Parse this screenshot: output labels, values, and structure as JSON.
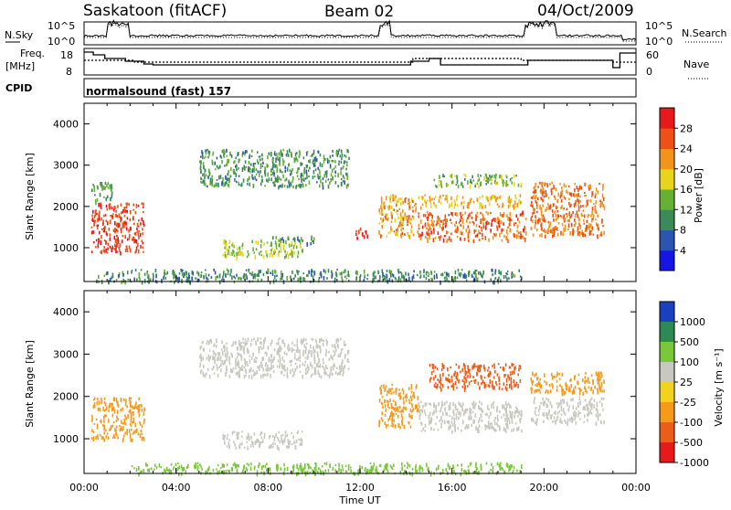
{
  "header": {
    "station": "Saskatoon  (fitACF)",
    "beam": "Beam 02",
    "date": "04/Oct/2009"
  },
  "noise_panel": {
    "left_label": "N.Sky",
    "right_label": "N.Search",
    "left_ticks": [
      "10^5",
      "10^0"
    ],
    "right_ticks": [
      "10^5",
      "10^0"
    ]
  },
  "freq_panel": {
    "left_label_1": "Freq.",
    "left_label_2": "[MHz]",
    "right_label": "Nave",
    "left_ticks": [
      "18",
      "8"
    ],
    "right_ticks": [
      "60",
      "0"
    ]
  },
  "cpid_panel": {
    "label": "CPID",
    "value": "normalsound (fast) 157"
  },
  "axes": {
    "ylabel": "Slant Range [km]",
    "xlabel": "Time UT",
    "y_ticks": [
      "1000",
      "2000",
      "3000",
      "4000"
    ],
    "x_ticks": [
      "00:00",
      "04:00",
      "08:00",
      "12:00",
      "16:00",
      "20:00",
      "00:00"
    ]
  },
  "power_colorbar": {
    "label": "Power [dB]",
    "ticks": [
      "4",
      "8",
      "12",
      "16",
      "20",
      "24",
      "28"
    ],
    "colors": [
      "#1515e6",
      "#2b55b0",
      "#3a8a5a",
      "#66b033",
      "#e6d51a",
      "#f2941a",
      "#ee5015",
      "#e61a1a"
    ]
  },
  "velocity_colorbar": {
    "label": "Velocity [m s⁻¹]",
    "ticks": [
      "1000",
      "500",
      "100",
      "25",
      "-25",
      "-100",
      "-500",
      "-1000"
    ],
    "colors": [
      "#1a3fbf",
      "#2e8a55",
      "#7ac83a",
      "#c8c8c0",
      "#f2d21a",
      "#f59a1a",
      "#ec5d1a",
      "#e61a1a"
    ]
  },
  "chart_data": {
    "type": "heatmap",
    "x_range": [
      "00:00",
      "24:00"
    ],
    "ylim": [
      180,
      4500
    ],
    "power_patches": [
      {
        "t0": 0.3,
        "t1": 2.6,
        "r0": 900,
        "r1": 2100,
        "level": 26
      },
      {
        "t0": 0.3,
        "t1": 1.2,
        "r0": 2100,
        "r1": 2600,
        "level": 10
      },
      {
        "t0": 5.0,
        "t1": 11.5,
        "r0": 2500,
        "r1": 3400,
        "level": 9
      },
      {
        "t0": 6.0,
        "t1": 9.5,
        "r0": 800,
        "r1": 1200,
        "level": 14
      },
      {
        "t0": 8.0,
        "t1": 10.0,
        "r0": 1100,
        "r1": 1300,
        "level": 8
      },
      {
        "t0": 11.8,
        "t1": 12.3,
        "r0": 1200,
        "r1": 1500,
        "level": 26
      },
      {
        "t0": 12.8,
        "t1": 14.5,
        "r0": 1300,
        "r1": 2300,
        "level": 20
      },
      {
        "t0": 14.5,
        "t1": 19.2,
        "r0": 1200,
        "r1": 1900,
        "level": 23
      },
      {
        "t0": 14.5,
        "t1": 19.0,
        "r0": 2000,
        "r1": 2300,
        "level": 18
      },
      {
        "t0": 15.0,
        "t1": 19.0,
        "r0": 2500,
        "r1": 2800,
        "level": 12
      },
      {
        "t0": 19.4,
        "t1": 22.6,
        "r0": 1300,
        "r1": 2600,
        "level": 22
      },
      {
        "t0": 0.5,
        "t1": 19.0,
        "r0": 200,
        "r1": 500,
        "level": 8
      }
    ],
    "velocity_patches": [
      {
        "t0": 0.3,
        "t1": 2.6,
        "r0": 1000,
        "r1": 2000,
        "level": -100
      },
      {
        "t0": 5.0,
        "t1": 11.5,
        "r0": 2500,
        "r1": 3400,
        "level": 0
      },
      {
        "t0": 6.0,
        "t1": 9.5,
        "r0": 800,
        "r1": 1200,
        "level": 0
      },
      {
        "t0": 12.8,
        "t1": 14.5,
        "r0": 1300,
        "r1": 2300,
        "level": -100
      },
      {
        "t0": 14.5,
        "t1": 19.0,
        "r0": 1200,
        "r1": 1900,
        "level": 0
      },
      {
        "t0": 15.0,
        "t1": 19.0,
        "r0": 2200,
        "r1": 2800,
        "level": -500
      },
      {
        "t0": 19.4,
        "t1": 22.6,
        "r0": 1400,
        "r1": 2000,
        "level": 0
      },
      {
        "t0": 19.4,
        "t1": 22.6,
        "r0": 2100,
        "r1": 2600,
        "level": -100
      },
      {
        "t0": 2.0,
        "t1": 19.0,
        "r0": 200,
        "r1": 450,
        "level": 100
      }
    ]
  }
}
